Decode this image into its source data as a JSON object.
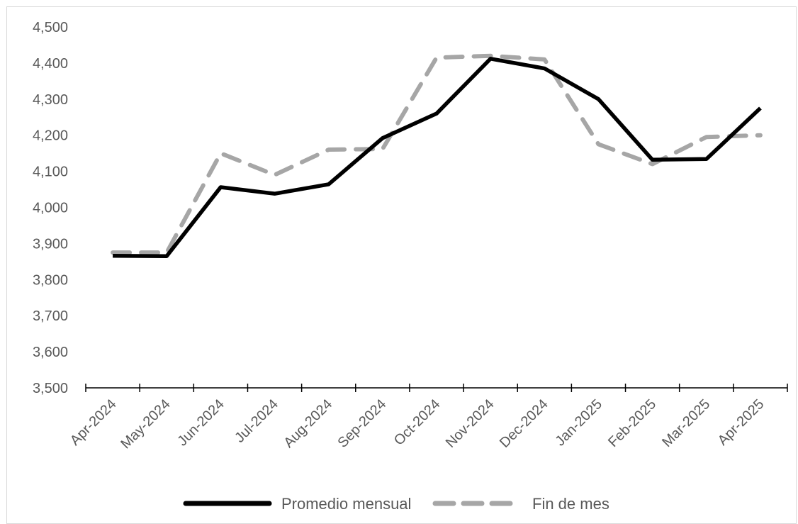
{
  "chart_data": {
    "type": "line",
    "title": "",
    "xlabel": "",
    "ylabel": "",
    "categories": [
      "Apr-2024",
      "May-2024",
      "Jun-2024",
      "Jul-2024",
      "Aug-2024",
      "Sep-2024",
      "Oct-2024",
      "Nov-2024",
      "Dec-2024",
      "Jan-2025",
      "Feb-2025",
      "Mar-2025",
      "Apr-2025"
    ],
    "ylim": [
      3500,
      4500
    ],
    "yticks": [
      3500,
      3600,
      3700,
      3800,
      3900,
      4000,
      4100,
      4200,
      4300,
      4400,
      4500
    ],
    "ytick_labels": [
      "3,500",
      "3,600",
      "3,700",
      "3,800",
      "3,900",
      "4,000",
      "4,100",
      "4,200",
      "4,300",
      "4,400",
      "4,500"
    ],
    "grid": false,
    "legend_position": "bottom",
    "series": [
      {
        "name": "Promedio mensual",
        "color": "#000000",
        "style": "solid",
        "values": [
          3866,
          3865,
          4056,
          4038,
          4064,
          4192,
          4260,
          4412,
          4385,
          4300,
          4132,
          4134,
          4275
        ]
      },
      {
        "name": "Fin de mes",
        "color": "#a6a6a6",
        "style": "dashed",
        "values": [
          3875,
          3875,
          4150,
          4090,
          4160,
          4162,
          4415,
          4420,
          4410,
          4175,
          4120,
          4195,
          4200
        ]
      }
    ]
  }
}
